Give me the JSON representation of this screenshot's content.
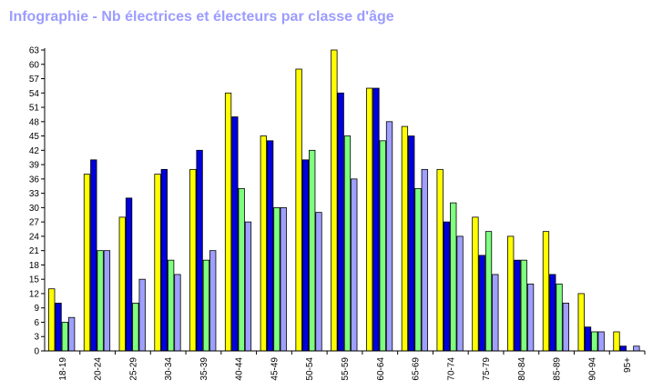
{
  "chart_data": {
    "type": "bar",
    "title": "Infographie - Nb électrices et électeurs par classe d'âge",
    "xlabel": "",
    "ylabel": "",
    "ylim": [
      0,
      63
    ],
    "yticks": [
      0,
      3,
      6,
      9,
      12,
      15,
      18,
      21,
      24,
      27,
      30,
      33,
      36,
      39,
      42,
      45,
      48,
      51,
      54,
      57,
      60,
      63
    ],
    "grid": false,
    "legend": "none",
    "categories": [
      "18-19",
      "20-24",
      "25-29",
      "30-34",
      "35-39",
      "40-44",
      "45-49",
      "50-54",
      "55-59",
      "60-64",
      "65-69",
      "70-74",
      "75-79",
      "80-84",
      "85-89",
      "90-94",
      "95+"
    ],
    "series": [
      {
        "color": "#ffff00",
        "values": [
          13,
          37,
          28,
          37,
          38,
          54,
          45,
          59,
          63,
          55,
          47,
          38,
          28,
          24,
          25,
          12,
          4
        ]
      },
      {
        "color": "#0000dd",
        "values": [
          10,
          40,
          32,
          38,
          42,
          49,
          44,
          40,
          54,
          55,
          45,
          27,
          20,
          19,
          16,
          5,
          1
        ]
      },
      {
        "color": "#7fff7f",
        "values": [
          6,
          21,
          10,
          19,
          19,
          34,
          30,
          42,
          45,
          44,
          34,
          31,
          25,
          19,
          14,
          4,
          0
        ]
      },
      {
        "color": "#9f9fff",
        "values": [
          7,
          21,
          15,
          16,
          21,
          27,
          30,
          29,
          36,
          48,
          38,
          24,
          16,
          14,
          10,
          4,
          1
        ]
      }
    ]
  }
}
